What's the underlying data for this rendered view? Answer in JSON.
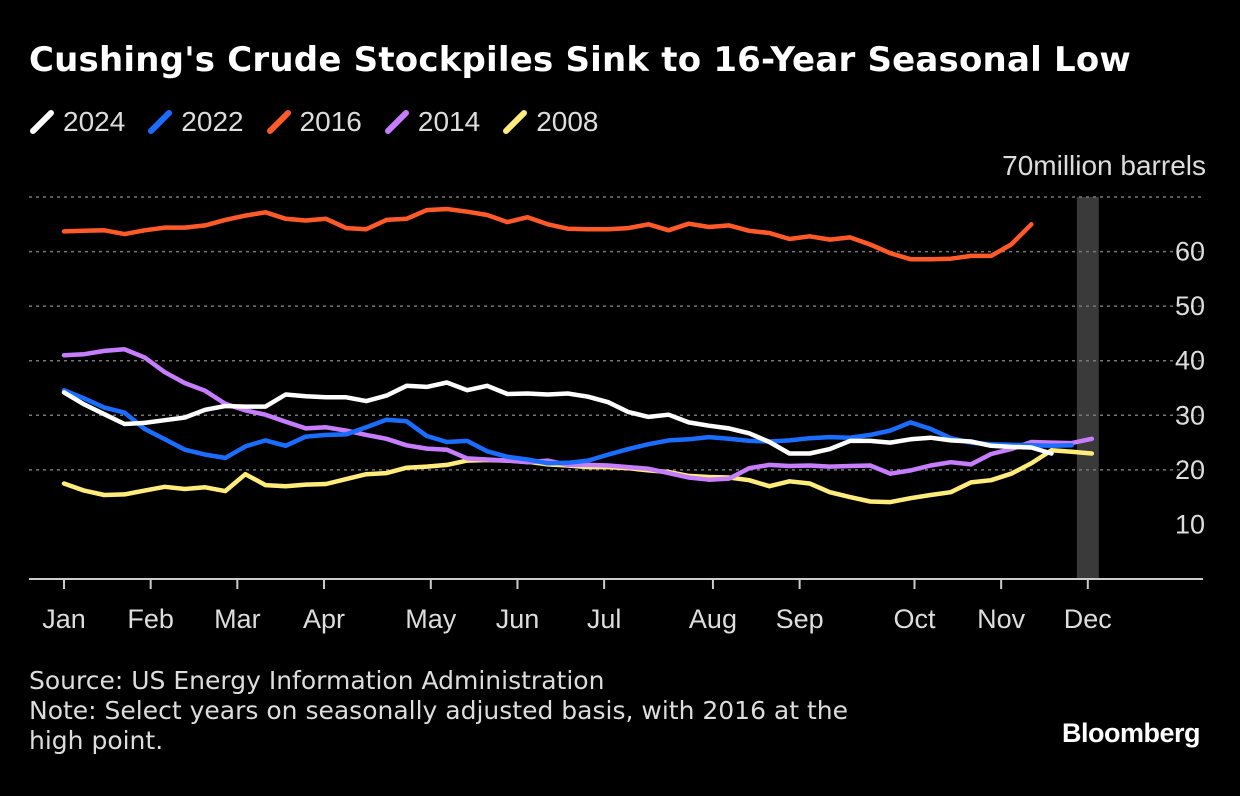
{
  "title": "Cushing's Crude Stockpiles Sink to 16-Year Seasonal Low",
  "unit_label": "70million barrels",
  "footer": {
    "source": "Source: US Energy Information Administration",
    "note": "Note: Select years on seasonally adjusted basis, with 2016 at the high point."
  },
  "brand": "Bloomberg",
  "chart_data": {
    "type": "line",
    "title": "Cushing's Crude Stockpiles Sink to 16-Year Seasonal Low",
    "ylabel": "million barrels",
    "ylim": [
      0,
      70
    ],
    "yticks": [
      10,
      20,
      30,
      40,
      50,
      60
    ],
    "y_axis_position": "right",
    "grid": "dotted horizontal",
    "legend_placement": "top-left",
    "highlight": "shaded band at Dec",
    "x_range": [
      0,
      52
    ],
    "xticks": [
      {
        "label": "Jan",
        "week": 0
      },
      {
        "label": "Feb",
        "week": 4.3
      },
      {
        "label": "Mar",
        "week": 8.6
      },
      {
        "label": "Apr",
        "week": 12.9
      },
      {
        "label": "May",
        "week": 18.2
      },
      {
        "label": "Jun",
        "week": 22.5
      },
      {
        "label": "Jul",
        "week": 26.8
      },
      {
        "label": "Aug",
        "week": 32.2
      },
      {
        "label": "Sep",
        "week": 36.5
      },
      {
        "label": "Oct",
        "week": 42.2
      },
      {
        "label": "Nov",
        "week": 46.5
      },
      {
        "label": "Dec",
        "week": 50.8
      }
    ],
    "series": [
      {
        "name": "2008",
        "color": "#ffec7a",
        "values": [
          17.5,
          16.2,
          15.4,
          15.5,
          16.2,
          16.9,
          16.5,
          16.8,
          16.1,
          19.2,
          17.2,
          17.0,
          17.3,
          17.4,
          18.3,
          19.2,
          19.4,
          20.4,
          20.6,
          20.9,
          21.7,
          21.8,
          21.7,
          21.5,
          21.0,
          20.8,
          20.5,
          20.5,
          20.3,
          19.9,
          19.6,
          18.9,
          18.7,
          18.6,
          18.1,
          17.0,
          17.9,
          17.5,
          15.9,
          15.0,
          14.2,
          14.1,
          14.8,
          15.4,
          15.9,
          17.7,
          18.1,
          19.3,
          21.2,
          23.6,
          23.3,
          23.0
        ]
      },
      {
        "name": "2014",
        "color": "#c77dff",
        "values": [
          41.0,
          41.2,
          41.8,
          42.1,
          40.6,
          37.9,
          35.9,
          34.5,
          32.1,
          30.9,
          30.1,
          28.8,
          27.6,
          27.8,
          27.2,
          26.4,
          25.7,
          24.5,
          23.9,
          23.7,
          22.1,
          21.9,
          21.7,
          21.4,
          21.7,
          20.9,
          20.9,
          20.8,
          20.5,
          20.2,
          19.4,
          18.6,
          18.2,
          18.4,
          20.3,
          20.9,
          20.7,
          20.8,
          20.6,
          20.7,
          20.8,
          19.3,
          19.9,
          20.8,
          21.4,
          21.0,
          22.9,
          23.8,
          25.1,
          25.0,
          24.9,
          25.7
        ]
      },
      {
        "name": "2016",
        "color": "#ff5a28",
        "values": [
          63.7,
          63.8,
          63.9,
          63.2,
          63.9,
          64.4,
          64.4,
          64.8,
          65.8,
          66.6,
          67.2,
          66.0,
          65.7,
          66.0,
          64.3,
          64.1,
          65.8,
          66.0,
          67.6,
          67.8,
          67.3,
          66.7,
          65.4,
          66.3,
          65.0,
          64.2,
          64.1,
          64.1,
          64.3,
          65.0,
          63.9,
          65.1,
          64.5,
          64.8,
          63.8,
          63.4,
          62.3,
          62.8,
          62.2,
          62.6,
          61.3,
          59.7,
          58.6,
          58.6,
          58.7,
          59.2,
          59.2,
          61.3,
          65.0
        ]
      },
      {
        "name": "2022",
        "color": "#1a6dff",
        "values": [
          34.6,
          33.1,
          31.4,
          30.5,
          27.5,
          25.6,
          23.7,
          22.8,
          22.2,
          24.3,
          25.4,
          24.4,
          26.1,
          26.4,
          26.5,
          27.8,
          29.2,
          28.9,
          26.2,
          25.1,
          25.3,
          23.4,
          22.4,
          21.9,
          21.2,
          21.3,
          21.7,
          22.8,
          23.8,
          24.7,
          25.4,
          25.6,
          26.0,
          25.7,
          25.3,
          25.2,
          25.4,
          25.8,
          26.0,
          25.9,
          26.4,
          27.2,
          28.7,
          27.5,
          25.8,
          25.0,
          24.7,
          24.6,
          24.5,
          24.4,
          24.5
        ]
      },
      {
        "name": "2024",
        "color": "#ffffff",
        "values": [
          34.2,
          32.0,
          30.2,
          28.4,
          28.6,
          29.1,
          29.6,
          31.0,
          31.7,
          31.6,
          31.6,
          33.8,
          33.5,
          33.3,
          33.3,
          32.6,
          33.6,
          35.4,
          35.2,
          36.0,
          34.6,
          35.4,
          33.9,
          34.0,
          33.8,
          34.0,
          33.4,
          32.4,
          30.6,
          29.7,
          30.1,
          28.7,
          28.1,
          27.6,
          26.7,
          25.1,
          23.0,
          23.0,
          23.8,
          25.3,
          25.3,
          25.0,
          25.6,
          25.9,
          25.4,
          25.2,
          24.4,
          24.2,
          24.1,
          23.0
        ]
      }
    ]
  }
}
